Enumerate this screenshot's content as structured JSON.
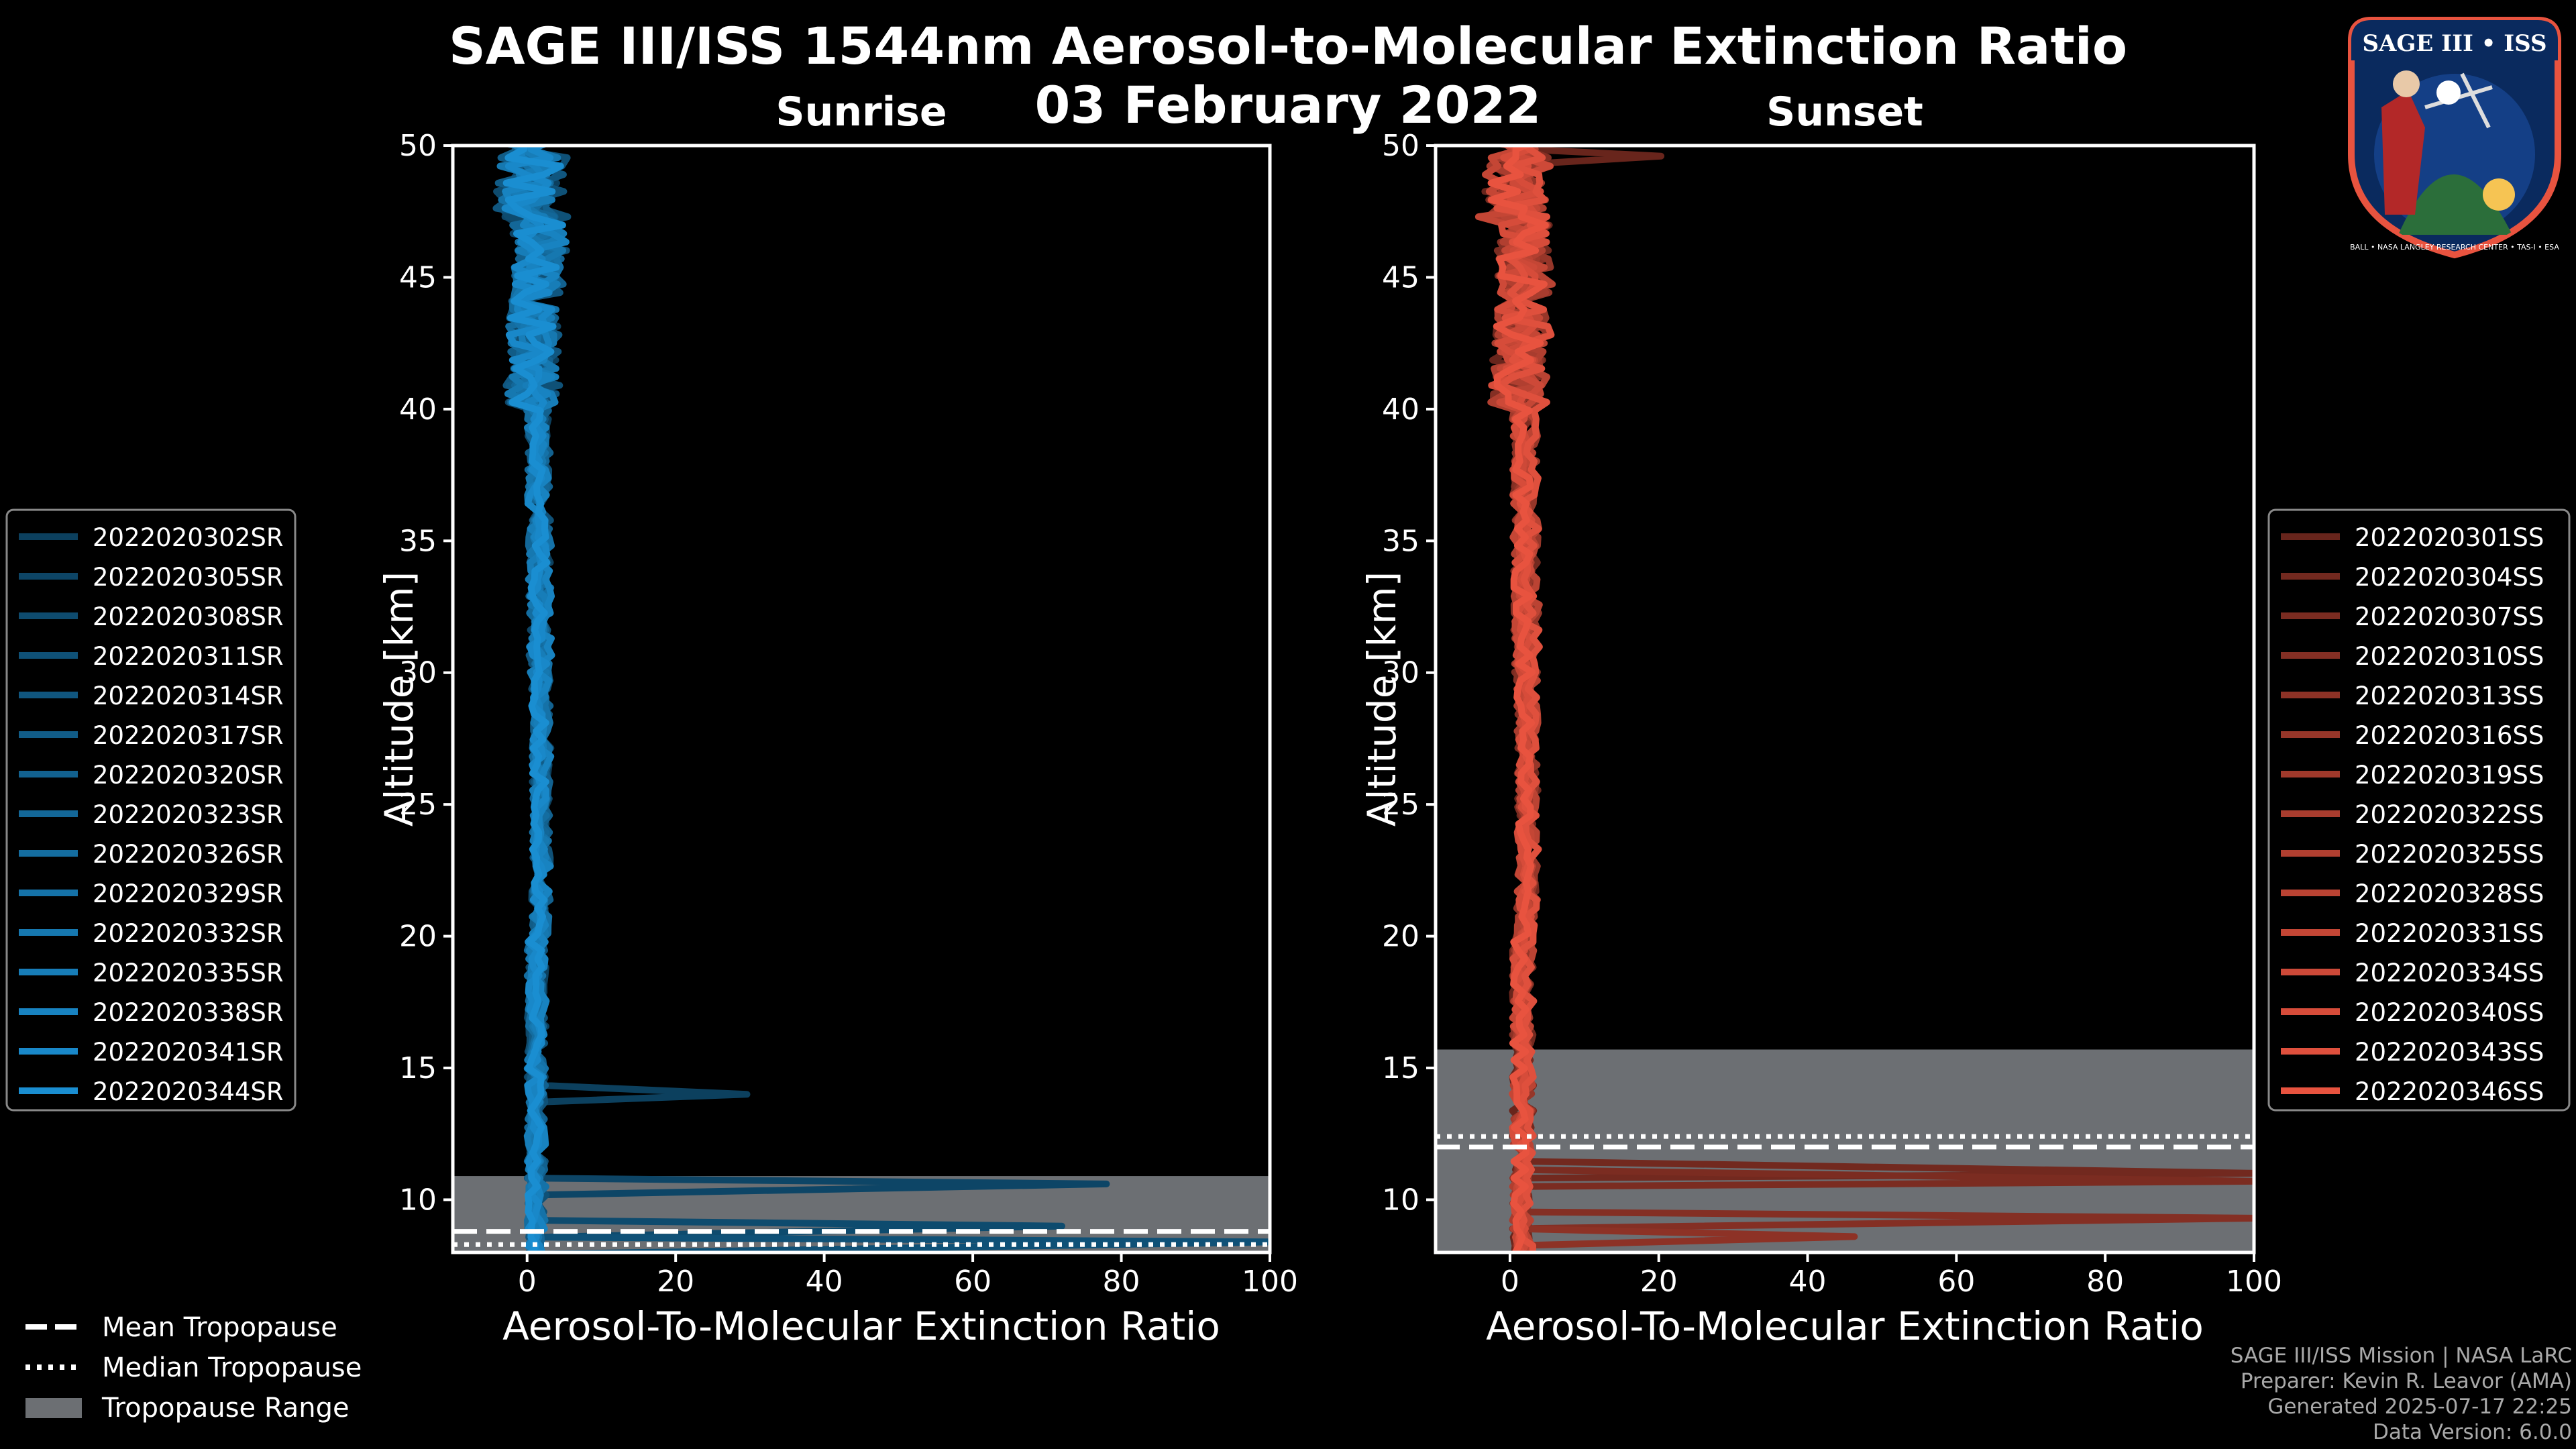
{
  "figure": {
    "title": "SAGE III/ISS 1544nm Aerosol-to-Molecular Extinction Ratio",
    "date": "03 February 2022"
  },
  "colors": {
    "background": "#000000",
    "sunrise": "#1a8ed1",
    "sunset": "#e8533f",
    "tropopause_range": "#6c6f73"
  },
  "chart_data": [
    {
      "type": "line",
      "panel": "sunrise",
      "title": "Sunrise",
      "xlabel": "Aerosol-To-Molecular Extinction Ratio",
      "ylabel": "Altitude [km]",
      "xlim": [
        -10,
        100
      ],
      "ylim": [
        8,
        50
      ],
      "xticks": [
        0,
        20,
        40,
        60,
        80,
        100
      ],
      "yticks": [
        10,
        15,
        20,
        25,
        30,
        35,
        40,
        45,
        50
      ],
      "series_names": [
        "2022020302SR",
        "2022020305SR",
        "2022020308SR",
        "2022020311SR",
        "2022020314SR",
        "2022020317SR",
        "2022020320SR",
        "2022020323SR",
        "2022020326SR",
        "2022020329SR",
        "2022020332SR",
        "2022020335SR",
        "2022020338SR",
        "2022020341SR",
        "2022020344SR"
      ],
      "tropopause": {
        "mean_km": 8.8,
        "median_km": 8.3,
        "range_km": [
          8.0,
          10.9
        ]
      },
      "notable_peaks": [
        {
          "alt": 14.0,
          "value": 29
        },
        {
          "alt": 10.6,
          "value": 78
        },
        {
          "alt": 9.0,
          "value": 72
        },
        {
          "alt": 8.4,
          "value": 100
        }
      ],
      "legend": "left"
    },
    {
      "type": "line",
      "panel": "sunset",
      "title": "Sunset",
      "xlabel": "Aerosol-To-Molecular Extinction Ratio",
      "ylabel": "Altitude [km]",
      "xlim": [
        -10,
        100
      ],
      "ylim": [
        8,
        50
      ],
      "xticks": [
        0,
        20,
        40,
        60,
        80,
        100
      ],
      "yticks": [
        10,
        15,
        20,
        25,
        30,
        35,
        40,
        45,
        50
      ],
      "series_names": [
        "2022020301SS",
        "2022020304SS",
        "2022020307SS",
        "2022020310SS",
        "2022020313SS",
        "2022020316SS",
        "2022020319SS",
        "2022020322SS",
        "2022020325SS",
        "2022020328SS",
        "2022020331SS",
        "2022020334SS",
        "2022020340SS",
        "2022020343SS",
        "2022020346SS"
      ],
      "tropopause": {
        "mean_km": 12.0,
        "median_km": 12.4,
        "range_km": [
          8.0,
          15.7
        ]
      },
      "notable_peaks": [
        {
          "alt": 49.6,
          "value": 20
        },
        {
          "alt": 11.0,
          "value": 100
        },
        {
          "alt": 10.7,
          "value": 100
        },
        {
          "alt": 9.3,
          "value": 100
        },
        {
          "alt": 8.6,
          "value": 46
        }
      ],
      "legend": "right"
    }
  ],
  "legend_tropopause": [
    "Mean Tropopause",
    "Median Tropopause",
    "Tropopause Range"
  ],
  "footer": {
    "line1": "SAGE III/ISS Mission | NASA LaRC",
    "line2": "Preparer: Kevin R. Leavor (AMA)",
    "line3": "Generated 2025-07-17 22:25",
    "line4": "Data Version: 6.0.0"
  },
  "logo": {
    "text": "SAGE III • ISS",
    "ring_text": "BALL • NASA LANGLEY RESEARCH CENTER • TAS-I • ESA"
  }
}
